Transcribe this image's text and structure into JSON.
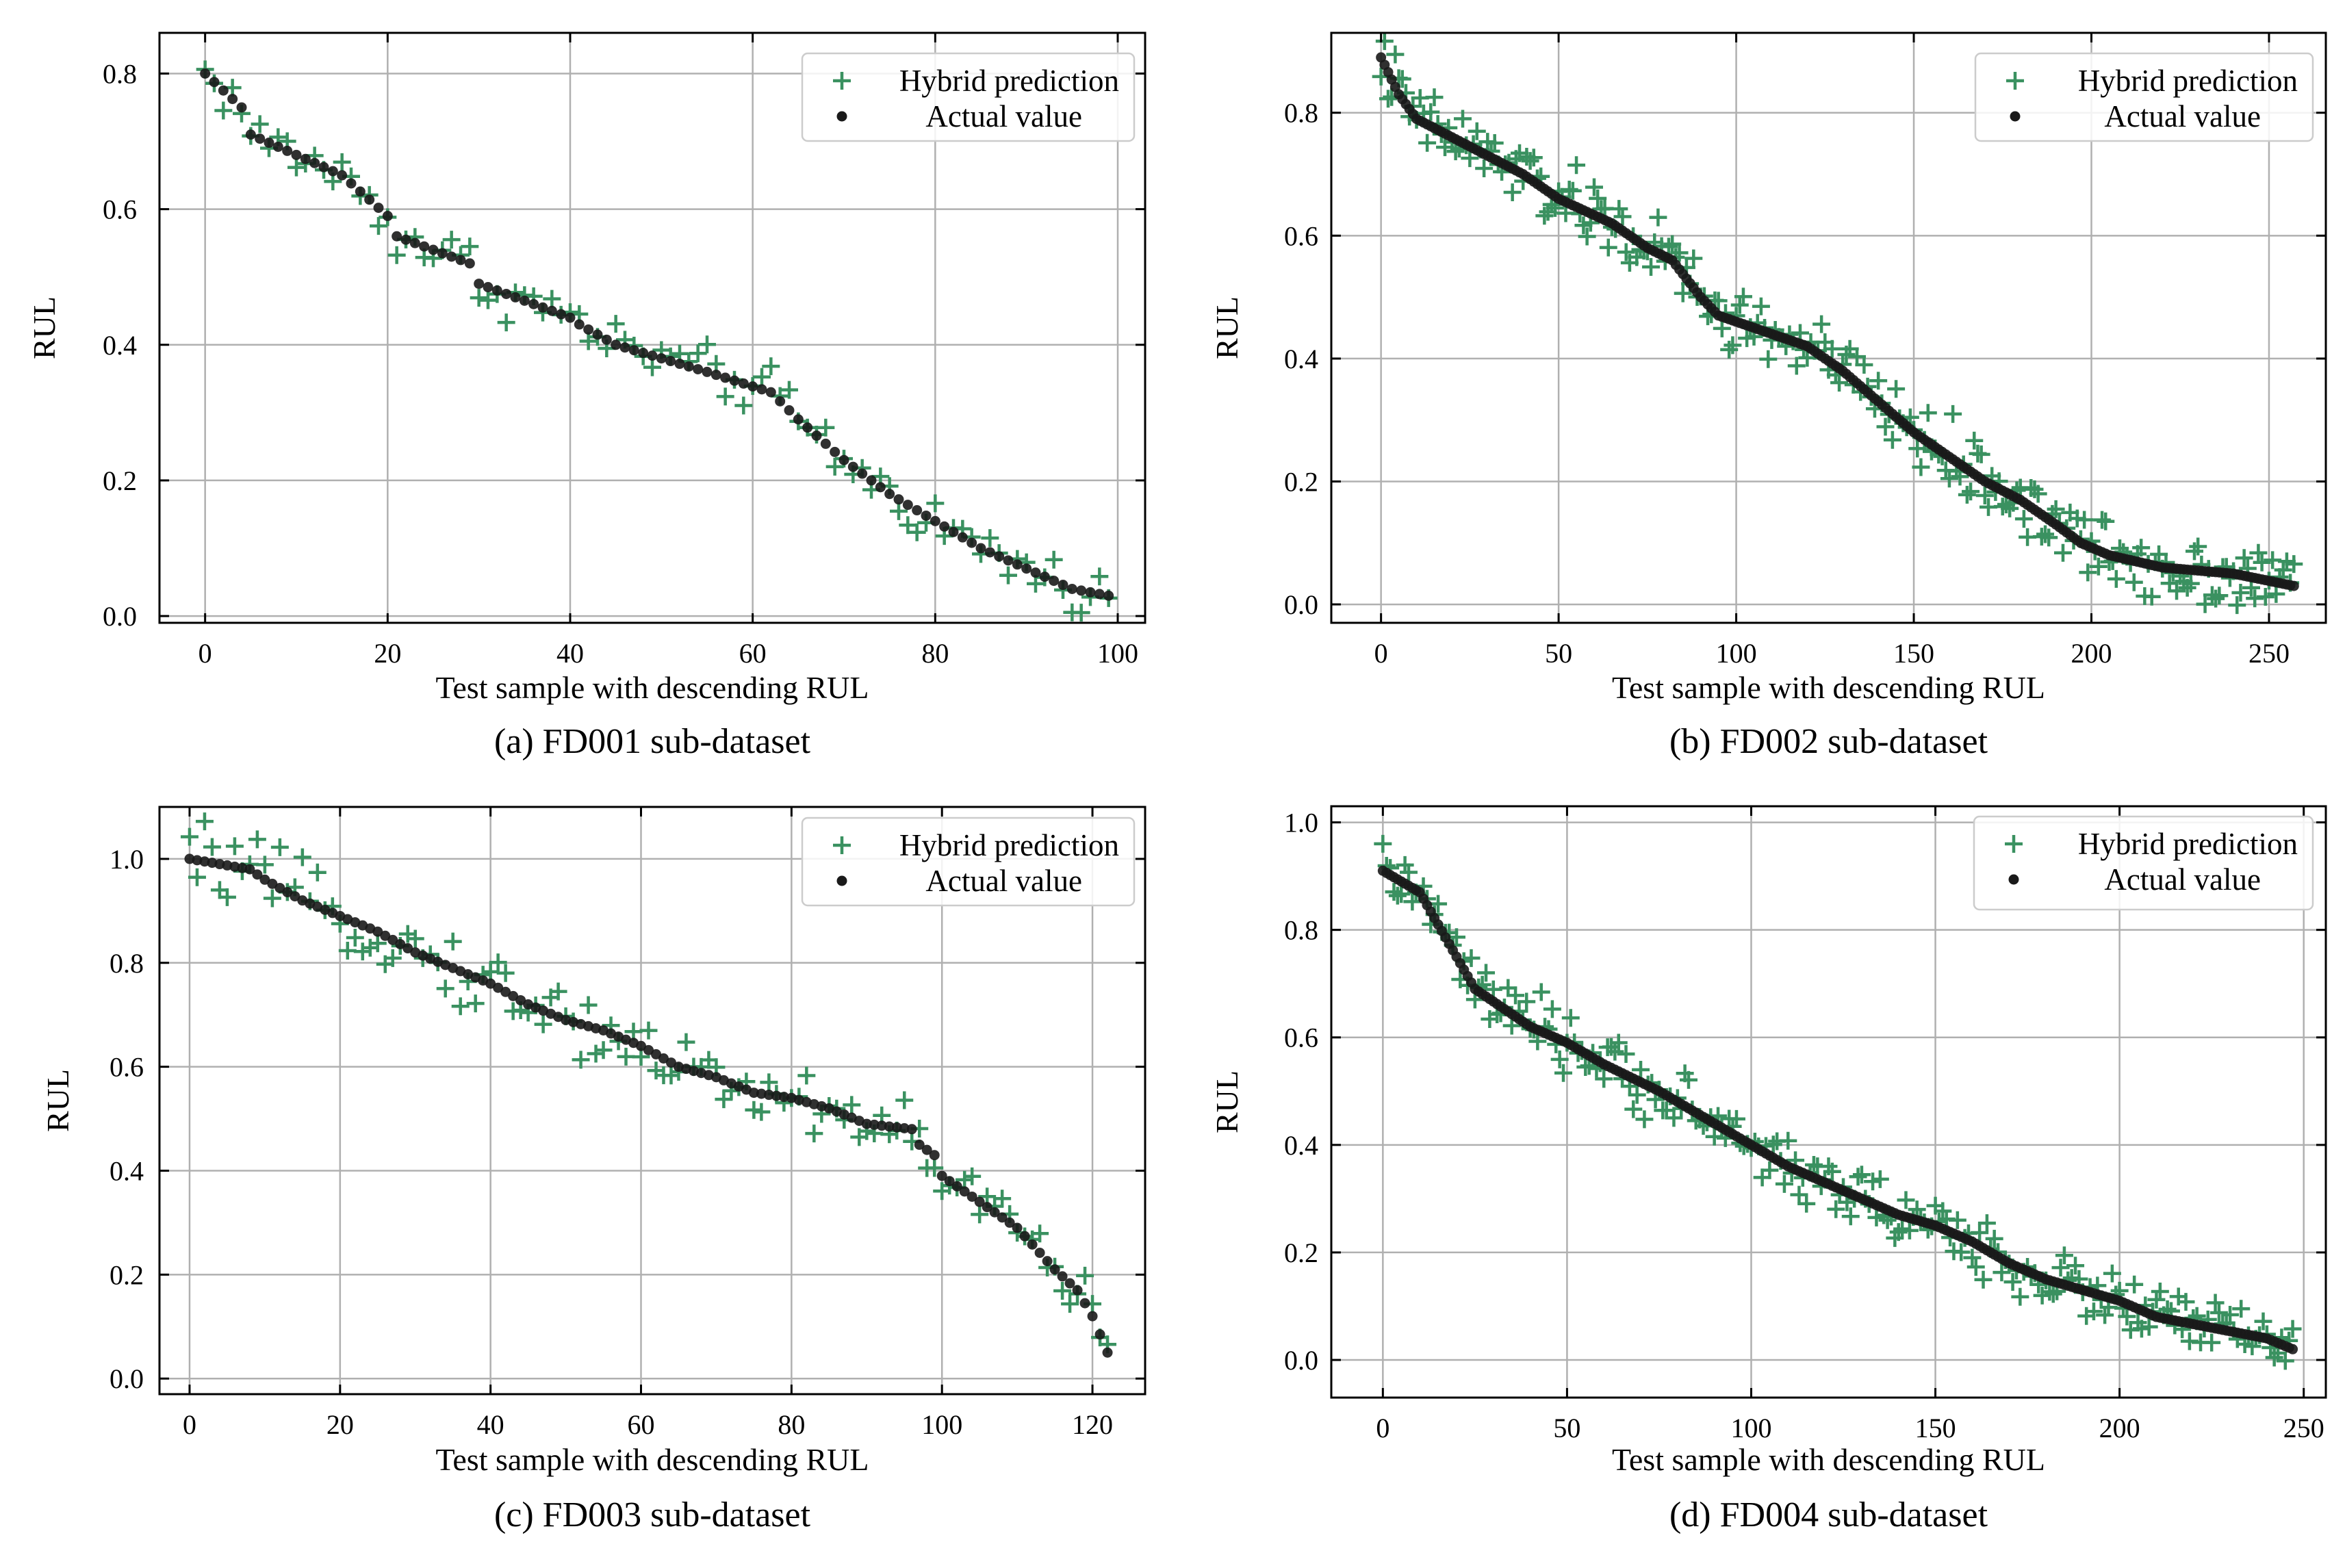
{
  "chart_data": [
    {
      "type": "scatter",
      "panel": "a",
      "caption": "(a) FD001 sub-dataset",
      "xlabel": "Test sample with descending RUL",
      "ylabel": "RUL",
      "xlim": [
        -5,
        103
      ],
      "ylim": [
        -0.01,
        0.86
      ],
      "xticks": [
        0,
        20,
        40,
        60,
        80,
        100
      ],
      "xtick_labels": [
        "0",
        "20",
        "40",
        "60",
        "80",
        "100"
      ],
      "yticks": [
        0.0,
        0.2,
        0.4,
        0.6,
        0.8
      ],
      "ytick_labels": [
        "0.0",
        "0.2",
        "0.4",
        "0.6",
        "0.8"
      ],
      "grid": true,
      "legend_position": "top-right",
      "n_samples": 100,
      "actual_anchors": [
        [
          0,
          0.8
        ],
        [
          4,
          0.75
        ],
        [
          5,
          0.71
        ],
        [
          10,
          0.68
        ],
        [
          15,
          0.65
        ],
        [
          20,
          0.59
        ],
        [
          21,
          0.56
        ],
        [
          29,
          0.52
        ],
        [
          30,
          0.49
        ],
        [
          40,
          0.44
        ],
        [
          41,
          0.43
        ],
        [
          45,
          0.4
        ],
        [
          50,
          0.38
        ],
        [
          55,
          0.36
        ],
        [
          62,
          0.33
        ],
        [
          65,
          0.29
        ],
        [
          70,
          0.23
        ],
        [
          75,
          0.18
        ],
        [
          80,
          0.14
        ],
        [
          85,
          0.1
        ],
        [
          90,
          0.07
        ],
        [
          95,
          0.04
        ],
        [
          99,
          0.03
        ]
      ],
      "prediction_spread": 0.04,
      "series": [
        {
          "name": "Hybrid prediction",
          "marker": "plus",
          "color": "#3a9160"
        },
        {
          "name": "Actual value",
          "marker": "dot",
          "color": "#1a1a1a"
        }
      ]
    },
    {
      "type": "scatter",
      "panel": "b",
      "caption": "(b) FD002 sub-dataset",
      "xlabel": "Test sample with descending RUL",
      "ylabel": "RUL",
      "xlim": [
        -14,
        266
      ],
      "ylim": [
        -0.03,
        0.93
      ],
      "xticks": [
        0,
        50,
        100,
        150,
        200,
        250
      ],
      "xtick_labels": [
        "0",
        "50",
        "100",
        "150",
        "200",
        "250"
      ],
      "yticks": [
        0.0,
        0.2,
        0.4,
        0.6,
        0.8
      ],
      "ytick_labels": [
        "0.0",
        "0.2",
        "0.4",
        "0.6",
        "0.8"
      ],
      "grid": true,
      "legend_position": "top-right",
      "n_samples": 258,
      "actual_anchors": [
        [
          0,
          0.89
        ],
        [
          5,
          0.83
        ],
        [
          10,
          0.79
        ],
        [
          20,
          0.76
        ],
        [
          40,
          0.7
        ],
        [
          50,
          0.66
        ],
        [
          65,
          0.62
        ],
        [
          75,
          0.58
        ],
        [
          82,
          0.56
        ],
        [
          90,
          0.5
        ],
        [
          95,
          0.47
        ],
        [
          110,
          0.44
        ],
        [
          120,
          0.42
        ],
        [
          130,
          0.38
        ],
        [
          140,
          0.33
        ],
        [
          150,
          0.28
        ],
        [
          160,
          0.24
        ],
        [
          170,
          0.2
        ],
        [
          180,
          0.17
        ],
        [
          190,
          0.13
        ],
        [
          197,
          0.1
        ],
        [
          205,
          0.08
        ],
        [
          220,
          0.06
        ],
        [
          240,
          0.05
        ],
        [
          257,
          0.03
        ]
      ],
      "prediction_spread": 0.06,
      "series": [
        {
          "name": "Hybrid prediction",
          "marker": "plus",
          "color": "#3a9160"
        },
        {
          "name": "Actual value",
          "marker": "dot",
          "color": "#1a1a1a"
        }
      ]
    },
    {
      "type": "scatter",
      "panel": "c",
      "caption": "(c) FD003 sub-dataset",
      "xlabel": "Test sample with descending RUL",
      "ylabel": "RUL",
      "xlim": [
        -4,
        127
      ],
      "ylim": [
        -0.03,
        1.1
      ],
      "xticks": [
        0,
        20,
        40,
        60,
        80,
        100,
        120
      ],
      "xtick_labels": [
        "0",
        "20",
        "40",
        "60",
        "80",
        "100",
        "120"
      ],
      "yticks": [
        0.0,
        0.2,
        0.4,
        0.6,
        0.8,
        1.0
      ],
      "ytick_labels": [
        "0.0",
        "0.2",
        "0.4",
        "0.6",
        "0.8",
        "1.0"
      ],
      "grid": true,
      "legend_position": "top-right",
      "n_samples": 123,
      "actual_anchors": [
        [
          0,
          1.0
        ],
        [
          8,
          0.98
        ],
        [
          10,
          0.96
        ],
        [
          15,
          0.92
        ],
        [
          20,
          0.89
        ],
        [
          25,
          0.86
        ],
        [
          30,
          0.82
        ],
        [
          35,
          0.79
        ],
        [
          40,
          0.76
        ],
        [
          45,
          0.72
        ],
        [
          50,
          0.69
        ],
        [
          55,
          0.67
        ],
        [
          60,
          0.64
        ],
        [
          65,
          0.6
        ],
        [
          70,
          0.58
        ],
        [
          75,
          0.55
        ],
        [
          80,
          0.54
        ],
        [
          85,
          0.52
        ],
        [
          90,
          0.49
        ],
        [
          96,
          0.48
        ],
        [
          97,
          0.45
        ],
        [
          99,
          0.43
        ],
        [
          100,
          0.39
        ],
        [
          105,
          0.34
        ],
        [
          110,
          0.29
        ],
        [
          115,
          0.21
        ],
        [
          118,
          0.17
        ],
        [
          120,
          0.12
        ],
        [
          122,
          0.05
        ]
      ],
      "prediction_spread": 0.07,
      "series": [
        {
          "name": "Hybrid prediction",
          "marker": "plus",
          "color": "#3a9160"
        },
        {
          "name": "Actual value",
          "marker": "dot",
          "color": "#1a1a1a"
        }
      ]
    },
    {
      "type": "scatter",
      "panel": "d",
      "caption": "(d) FD004 sub-dataset",
      "xlabel": "Test sample with descending RUL",
      "ylabel": "RUL",
      "xlim": [
        -14,
        256
      ],
      "ylim": [
        -0.07,
        1.03
      ],
      "xticks": [
        0,
        50,
        100,
        150,
        200,
        250
      ],
      "xtick_labels": [
        "0",
        "50",
        "100",
        "150",
        "200",
        "250"
      ],
      "yticks": [
        0.0,
        0.2,
        0.4,
        0.6,
        0.8,
        1.0
      ],
      "ytick_labels": [
        "0.0",
        "0.2",
        "0.4",
        "0.6",
        "0.8",
        "1.0"
      ],
      "grid": true,
      "legend_position": "top-right",
      "n_samples": 248,
      "actual_anchors": [
        [
          0,
          0.91
        ],
        [
          10,
          0.87
        ],
        [
          15,
          0.81
        ],
        [
          20,
          0.75
        ],
        [
          25,
          0.69
        ],
        [
          40,
          0.62
        ],
        [
          50,
          0.59
        ],
        [
          60,
          0.55
        ],
        [
          75,
          0.5
        ],
        [
          80,
          0.48
        ],
        [
          90,
          0.44
        ],
        [
          100,
          0.4
        ],
        [
          110,
          0.36
        ],
        [
          120,
          0.33
        ],
        [
          130,
          0.3
        ],
        [
          140,
          0.27
        ],
        [
          150,
          0.25
        ],
        [
          160,
          0.22
        ],
        [
          170,
          0.18
        ],
        [
          180,
          0.15
        ],
        [
          190,
          0.13
        ],
        [
          200,
          0.11
        ],
        [
          210,
          0.08
        ],
        [
          225,
          0.06
        ],
        [
          240,
          0.04
        ],
        [
          247,
          0.02
        ]
      ],
      "prediction_spread": 0.06,
      "series": [
        {
          "name": "Hybrid prediction",
          "marker": "plus",
          "color": "#3a9160"
        },
        {
          "name": "Actual value",
          "marker": "dot",
          "color": "#1a1a1a"
        }
      ]
    }
  ]
}
